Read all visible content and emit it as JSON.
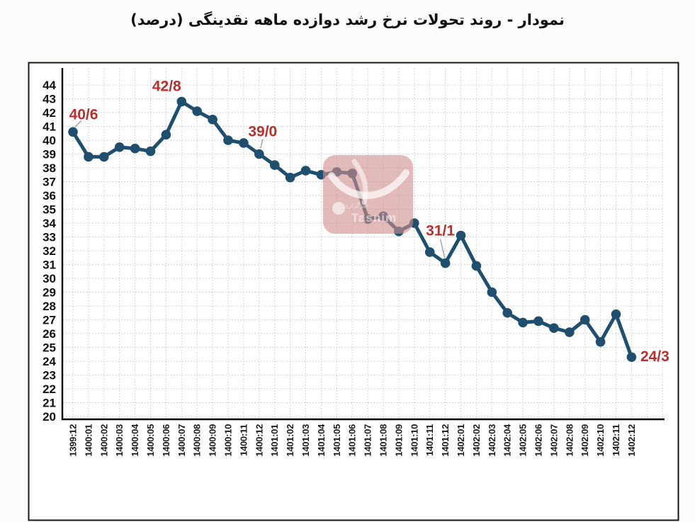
{
  "title": "نمودار - روند تحولات نرخ رشد دوازده ماهه نقدینگی (درصد)",
  "watermark": {
    "name": "tasnim-logo",
    "latin_text": "Tasnim",
    "persian_text": "خبرگزاری",
    "color": "#d18f8f"
  },
  "colors": {
    "line": "#1f4e6e",
    "annotation": "#b5312d",
    "grid": "#c6c6c6",
    "axis": "#000000",
    "plot_background": "#ffffff"
  },
  "chart_data": {
    "type": "line",
    "title": "نمودار - روند تحولات نرخ رشد دوازده ماهه نقدینگی (درصد)",
    "xlabel": "",
    "ylabel": "",
    "ylim": [
      20,
      44
    ],
    "ytick_step": 1,
    "grid": true,
    "legend": "none",
    "marker": "circle",
    "categories": [
      "1399:12",
      "1400:01",
      "1400:02",
      "1400:03",
      "1400:04",
      "1400:05",
      "1400:06",
      "1400:07",
      "1400:08",
      "1400:09",
      "1400:10",
      "1400:11",
      "1400:12",
      "1401:01",
      "1401:02",
      "1401:03",
      "1401:04",
      "1401:05",
      "1401:06",
      "1401:07",
      "1401:08",
      "1401:09",
      "1401:10",
      "1401:11",
      "1401:12",
      "1402:01",
      "1402:02",
      "1402:03",
      "1402:04",
      "1402:05",
      "1402:06",
      "1402:07",
      "1402:08",
      "1402:09",
      "1402:10",
      "1402:11",
      "1402:12"
    ],
    "values": [
      40.6,
      38.8,
      38.8,
      39.5,
      39.4,
      39.2,
      40.4,
      42.8,
      42.1,
      41.5,
      40.0,
      39.8,
      39.0,
      38.2,
      37.3,
      37.8,
      37.5,
      37.7,
      37.6,
      34.3,
      34.5,
      33.4,
      34.0,
      31.9,
      31.1,
      33.1,
      30.9,
      29.0,
      27.5,
      26.8,
      26.9,
      26.4,
      26.1,
      27.0,
      25.4,
      27.4,
      24.3
    ],
    "annotations": [
      {
        "index": 0,
        "label": "40/6",
        "value": 40.6
      },
      {
        "index": 7,
        "label": "42/8",
        "value": 42.8
      },
      {
        "index": 12,
        "label": "39/0",
        "value": 39.0
      },
      {
        "index": 24,
        "label": "31/1",
        "value": 31.1
      },
      {
        "index": 36,
        "label": "24/3",
        "value": 24.3
      }
    ]
  }
}
